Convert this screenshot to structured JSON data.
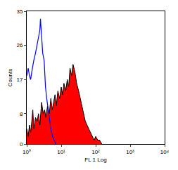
{
  "chart_data": {
    "type": "line",
    "x_label": "FL 1 Log",
    "y_label": "Counts",
    "log": "x",
    "grid": false,
    "xlim": [
      1,
      10000
    ],
    "xticks": [
      {
        "value": 1,
        "label": "10⁰"
      },
      {
        "value": 10,
        "label": "10¹"
      },
      {
        "value": 100,
        "label": "10²"
      },
      {
        "value": 1000,
        "label": "10³"
      },
      {
        "value": 10000,
        "label": "10⁴"
      }
    ],
    "ylim": [
      0,
      35
    ],
    "yticks": [
      0,
      8,
      17,
      26,
      35
    ],
    "series": [
      {
        "type": "area",
        "color": "#ff0000",
        "x": [
          1,
          1.1,
          1.2,
          1.3,
          1.4,
          1.5,
          1.6,
          1.8,
          2,
          2.2,
          2.4,
          2.7,
          3,
          3.3,
          3.6,
          4,
          4.5,
          5,
          5.5,
          6,
          6.6,
          7.2,
          8,
          9,
          10,
          11,
          12,
          13.5,
          15,
          16.5,
          18,
          20,
          22,
          25,
          28,
          32,
          36,
          40,
          45,
          50,
          56,
          63,
          70,
          80,
          90,
          100,
          115,
          130,
          150
        ],
        "values": [
          4,
          2,
          5,
          3,
          6,
          9,
          4,
          7,
          6,
          8,
          5,
          11,
          8,
          9,
          7,
          10,
          8,
          12,
          9,
          11,
          13,
          10,
          14,
          12,
          15,
          13,
          16,
          14,
          17,
          15,
          20,
          18,
          21,
          19,
          16,
          14,
          12,
          10,
          8,
          6,
          5,
          4,
          3,
          2,
          1,
          2,
          1,
          1,
          0
        ]
      },
      {
        "type": "line",
        "color": "#0000ff",
        "x": [
          1,
          1.05,
          1.1,
          1.2,
          1.3,
          1.4,
          1.5,
          1.6,
          1.8,
          2,
          2.2,
          2.4,
          2.5,
          2.7,
          2.9,
          3.2,
          3.5,
          3.8,
          4.2,
          4.6,
          5,
          5.6,
          6.3,
          7
        ],
        "values": [
          18,
          19,
          20,
          18,
          17,
          19,
          21,
          22,
          24,
          26,
          28,
          30,
          33,
          27,
          24,
          22,
          15,
          12,
          9,
          6,
          4,
          2,
          1,
          0
        ]
      }
    ]
  }
}
